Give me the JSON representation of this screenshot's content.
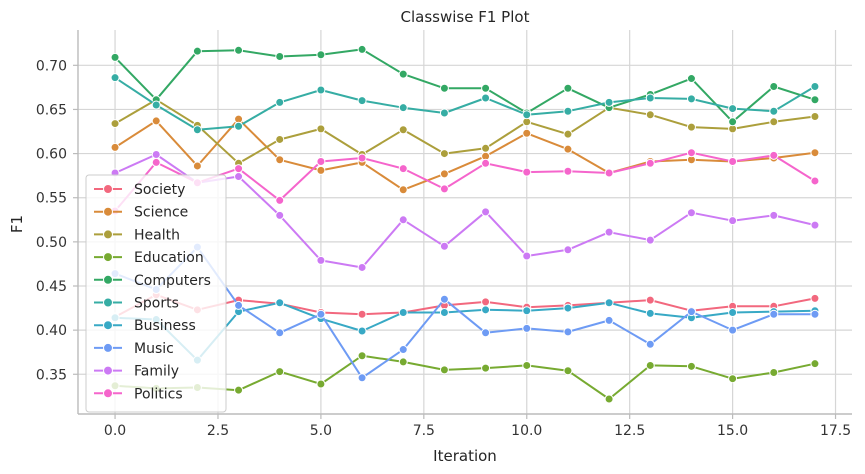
{
  "chart_data": {
    "type": "line",
    "title": "Classwise F1 Plot",
    "xlabel": "Iteration",
    "ylabel": "F1",
    "xlim": [
      -0.9,
      17.9
    ],
    "ylim": [
      0.305,
      0.74
    ],
    "xticks": [
      0.0,
      2.5,
      5.0,
      7.5,
      10.0,
      12.5,
      15.0,
      17.5
    ],
    "xtick_labels": [
      "0.0",
      "2.5",
      "5.0",
      "7.5",
      "10.0",
      "12.5",
      "15.0",
      "17.5"
    ],
    "yticks": [
      0.35,
      0.4,
      0.45,
      0.5,
      0.55,
      0.6,
      0.65,
      0.7
    ],
    "ytick_labels": [
      "0.35",
      "0.40",
      "0.45",
      "0.50",
      "0.55",
      "0.60",
      "0.65",
      "0.70"
    ],
    "grid": true,
    "legend_position": "lower-left",
    "x": [
      0,
      1,
      2,
      3,
      4,
      5,
      6,
      7,
      8,
      9,
      10,
      11,
      12,
      13,
      14,
      15,
      16,
      17
    ],
    "series": [
      {
        "name": "Society",
        "color": "#f2687e",
        "values": [
          0.415,
          0.44,
          0.423,
          0.434,
          0.43,
          0.42,
          0.418,
          0.42,
          0.428,
          0.432,
          0.426,
          0.428,
          0.431,
          0.434,
          0.422,
          0.427,
          0.427,
          0.436
        ]
      },
      {
        "name": "Science",
        "color": "#d98b3a",
        "values": [
          0.607,
          0.637,
          0.586,
          0.639,
          0.593,
          0.581,
          0.59,
          0.559,
          0.577,
          0.597,
          0.623,
          0.605,
          0.578,
          0.591,
          0.593,
          0.591,
          0.595,
          0.601
        ]
      },
      {
        "name": "Health",
        "color": "#ac9f3c",
        "values": [
          0.634,
          0.661,
          0.632,
          0.589,
          0.616,
          0.628,
          0.599,
          0.627,
          0.6,
          0.606,
          0.636,
          0.622,
          0.652,
          0.644,
          0.63,
          0.628,
          0.636,
          0.642
        ]
      },
      {
        "name": "Education",
        "color": "#77aa31",
        "values": [
          0.337,
          0.334,
          0.335,
          0.332,
          0.353,
          0.339,
          0.371,
          0.364,
          0.355,
          0.357,
          0.36,
          0.354,
          0.322,
          0.36,
          0.359,
          0.345,
          0.352,
          0.362
        ]
      },
      {
        "name": "Computers",
        "color": "#33a864",
        "values": [
          0.709,
          0.661,
          0.716,
          0.717,
          0.71,
          0.712,
          0.718,
          0.69,
          0.674,
          0.674,
          0.646,
          0.674,
          0.652,
          0.667,
          0.685,
          0.636,
          0.676,
          0.661
        ]
      },
      {
        "name": "Sports",
        "color": "#36ada4",
        "values": [
          0.686,
          0.655,
          0.627,
          0.631,
          0.658,
          0.672,
          0.66,
          0.652,
          0.646,
          0.663,
          0.644,
          0.648,
          0.658,
          0.663,
          0.662,
          0.651,
          0.648,
          0.676
        ]
      },
      {
        "name": "Business",
        "color": "#38a9c5",
        "values": [
          0.414,
          0.412,
          0.366,
          0.421,
          0.431,
          0.413,
          0.399,
          0.42,
          0.42,
          0.423,
          0.422,
          0.425,
          0.431,
          0.419,
          0.414,
          0.42,
          0.421,
          0.422
        ]
      },
      {
        "name": "Music",
        "color": "#6e9bf4",
        "values": [
          0.464,
          0.446,
          0.494,
          0.428,
          0.397,
          0.418,
          0.346,
          0.378,
          0.435,
          0.397,
          0.402,
          0.398,
          0.411,
          0.384,
          0.421,
          0.4,
          0.418,
          0.418
        ]
      },
      {
        "name": "Family",
        "color": "#cc7af4",
        "values": [
          0.578,
          0.599,
          0.567,
          0.574,
          0.53,
          0.479,
          0.471,
          0.525,
          0.495,
          0.534,
          0.484,
          0.491,
          0.511,
          0.502,
          0.533,
          0.524,
          0.53,
          0.519
        ]
      },
      {
        "name": "Politics",
        "color": "#f565cc",
        "values": [
          0.535,
          0.59,
          0.567,
          0.583,
          0.547,
          0.591,
          0.595,
          0.583,
          0.56,
          0.589,
          0.579,
          0.58,
          0.578,
          0.589,
          0.601,
          0.591,
          0.598,
          0.569
        ]
      }
    ]
  }
}
